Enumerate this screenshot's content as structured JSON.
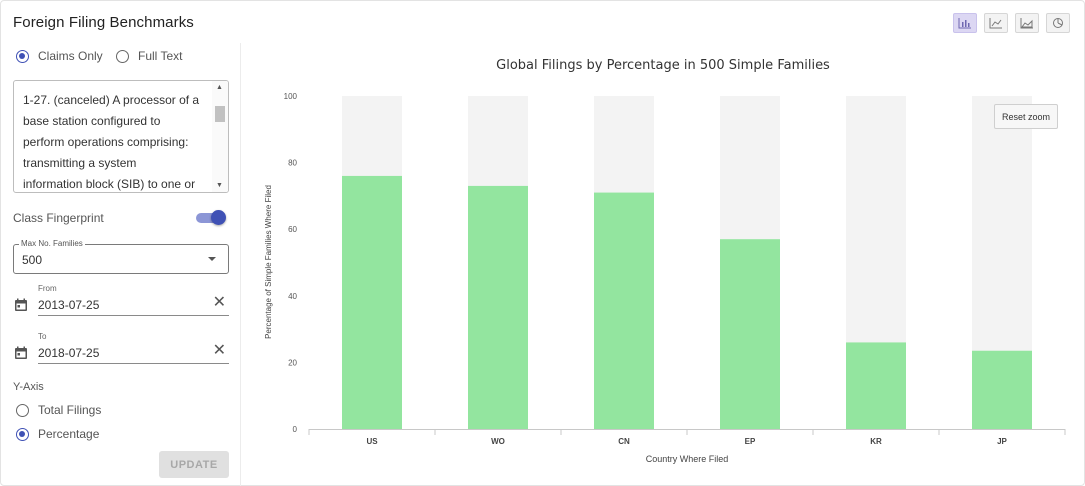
{
  "app": {
    "title": "Foreign Filing Benchmarks"
  },
  "view_switcher": [
    {
      "name": "bar-chart-icon",
      "active": true
    },
    {
      "name": "line-chart-icon",
      "active": false
    },
    {
      "name": "area-chart-icon",
      "active": false
    },
    {
      "name": "pie-chart-icon",
      "active": false
    }
  ],
  "mode": {
    "options": [
      "Claims Only",
      "Full Text"
    ],
    "selected": "Claims Only"
  },
  "claims": {
    "lines": [
      "1-27. (canceled) A processor of a",
      "base station configured to",
      "perform operations comprising:",
      "transmitting a system",
      "information block (SIB) to one or"
    ]
  },
  "class_fingerprint": {
    "label": "Class Fingerprint",
    "enabled": true
  },
  "max_families": {
    "label": "Max No. Families",
    "value": "500"
  },
  "from": {
    "label": "From",
    "value": "2013-07-25"
  },
  "to": {
    "label": "To",
    "value": "2018-07-25"
  },
  "y_axis": {
    "label": "Y-Axis",
    "options": [
      "Total Filings",
      "Percentage"
    ],
    "selected": "Percentage"
  },
  "update_label": "UPDATE",
  "reset_zoom_label": "Reset zoom",
  "colors": {
    "accent": "#3f51b5",
    "bar": "#93e59f",
    "bar_bg": "#f3f3f3"
  },
  "chart_data": {
    "type": "bar",
    "title": "Global Filings by Percentage in 500 Simple Families",
    "xlabel": "Country Where Filed",
    "ylabel": "Percentage of Simple Families Where Filed",
    "categories": [
      "US",
      "WO",
      "CN",
      "EP",
      "KR",
      "JP"
    ],
    "series": [
      {
        "values": [
          76,
          73,
          71,
          57,
          26,
          23.5
        ]
      }
    ],
    "ylim": [
      0,
      100
    ],
    "yticks": [
      0,
      20,
      40,
      60,
      80,
      100
    ],
    "grid": false,
    "legend": "none"
  }
}
